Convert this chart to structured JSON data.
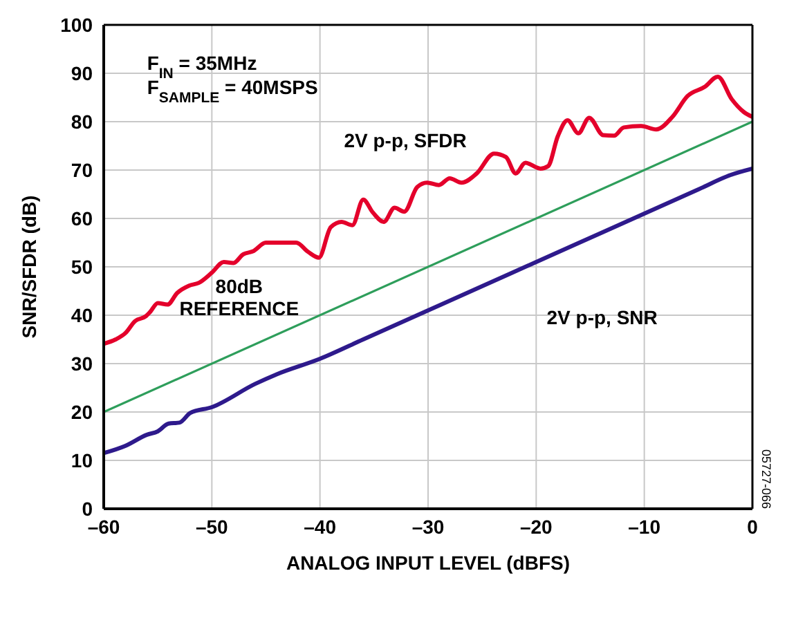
{
  "chart_data": {
    "type": "line",
    "xlabel": "ANALOG INPUT LEVEL (dBFS)",
    "ylabel": "SNR/SFDR (dB)",
    "xlim": [
      -60,
      0
    ],
    "ylim": [
      0,
      100
    ],
    "xticks": [
      {
        "value": -60,
        "label": "–60"
      },
      {
        "value": -50,
        "label": "–50"
      },
      {
        "value": -40,
        "label": "–40"
      },
      {
        "value": -30,
        "label": "–30"
      },
      {
        "value": -20,
        "label": "–20"
      },
      {
        "value": -10,
        "label": "–10"
      },
      0
    ],
    "yticks": [
      0,
      10,
      20,
      30,
      40,
      50,
      60,
      70,
      80,
      90,
      100
    ],
    "grid": true,
    "marker": "none",
    "line_style": "solid",
    "annotations": [
      "F$_{IN}$ = 35MHz",
      "F$_{SAMPLE}$ = 40MSPS",
      "05727-066"
    ],
    "series": [
      {
        "name": "2V p-p, SFDR",
        "color": "#e4002b",
        "x": [
          -60,
          -58.9,
          -58,
          -57.1,
          -56.1,
          -55.7,
          -55,
          -54.1,
          -53.2,
          -52.1,
          -51.2,
          -50,
          -48.9,
          -48,
          -47.1,
          -46.2,
          -45,
          -43.4,
          -42.2,
          -41.1,
          -40.1,
          -39,
          -38,
          -37,
          -36,
          -35.1,
          -34.1,
          -33.1,
          -32.2,
          -31,
          -30.1,
          -29,
          -28,
          -26.9,
          -25.5,
          -23.9,
          -22.8,
          -21.9,
          -21,
          -19.6,
          -18.9,
          -18,
          -17.1,
          -16.1,
          -15.1,
          -13.8,
          -12.8,
          -11.9,
          -10.3,
          -8.9,
          -7.4,
          -6,
          -4.4,
          -3.2,
          -1.9,
          -0.8,
          0
        ],
        "values": [
          34.1,
          35,
          36.3,
          38.8,
          39.8,
          40.7,
          42.5,
          42.2,
          44.6,
          46.1,
          46.7,
          48.8,
          51,
          50.8,
          52.6,
          53.2,
          55,
          55,
          55,
          53.1,
          51.9,
          58.2,
          59.3,
          58.6,
          63.9,
          61.2,
          59.3,
          62.2,
          61.4,
          66.5,
          67.4,
          66.9,
          68.3,
          67.4,
          69.3,
          73.4,
          72.7,
          69.3,
          71.5,
          70.3,
          70.8,
          77,
          80.3,
          77.6,
          80.8,
          77.2,
          77.1,
          78.8,
          79.1,
          78.4,
          81,
          85.3,
          87.2,
          89.3,
          84.6,
          82,
          81
        ]
      },
      {
        "name": "80dB REFERENCE",
        "color": "#2e9e5b",
        "x": [
          -60,
          0
        ],
        "values": [
          20,
          80
        ]
      },
      {
        "name": "2V p-p, SNR",
        "color": "#2e1a8c",
        "x": [
          -60,
          -58,
          -56,
          -55,
          -54,
          -53,
          -52,
          -50,
          -46,
          -44,
          -40,
          -36,
          -30,
          -25,
          -20,
          -15,
          -10,
          -5,
          -2,
          0
        ],
        "values": [
          11.5,
          13,
          15.3,
          16,
          17.6,
          17.8,
          19.8,
          21,
          25.8,
          27.8,
          31,
          35,
          41,
          46,
          51,
          56,
          61,
          66,
          69,
          70.3
        ]
      }
    ]
  }
}
